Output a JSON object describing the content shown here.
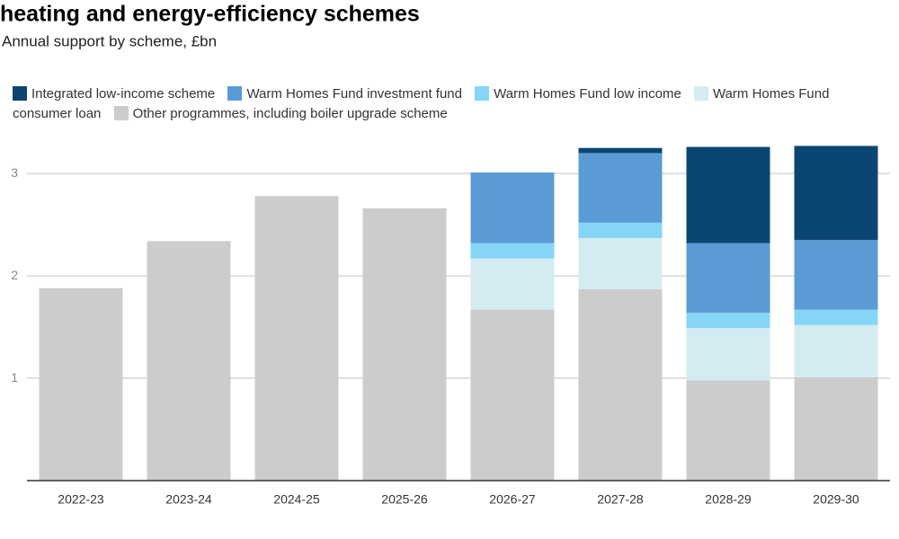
{
  "chart_data": {
    "type": "stacked_bar",
    "title": "heating and energy-efficiency schemes",
    "subtitle": "Annual support by scheme, £bn",
    "categories": [
      "2022-23",
      "2023-24",
      "2024-25",
      "2025-26",
      "2026-27",
      "2027-28",
      "2028-29",
      "2029-30"
    ],
    "series": [
      {
        "name": "Integrated low-income scheme",
        "color": "#0b4572",
        "values": [
          null,
          null,
          null,
          null,
          null,
          0.05,
          0.94,
          0.92
        ]
      },
      {
        "name": "Warm Homes Fund investment fund",
        "color": "#5b9bd5",
        "values": [
          null,
          null,
          null,
          null,
          0.69,
          0.68,
          0.68,
          0.68
        ]
      },
      {
        "name": "Warm Homes Fund low income",
        "color": "#85d5f7",
        "values": [
          null,
          null,
          null,
          null,
          0.15,
          0.15,
          0.15,
          0.15
        ]
      },
      {
        "name": "Warm Homes Fund consumer loan",
        "color": "#d4ebf2",
        "values": [
          null,
          null,
          null,
          null,
          0.5,
          0.5,
          0.51,
          0.51
        ]
      },
      {
        "name": "Other programmes, including boiler upgrade scheme",
        "color": "#cccccc",
        "values": [
          1.88,
          2.34,
          2.78,
          2.66,
          1.67,
          1.87,
          0.98,
          1.01
        ]
      }
    ],
    "ylim": [
      0,
      3.3
    ],
    "yticks": [
      1,
      2,
      3
    ],
    "grid": true
  }
}
